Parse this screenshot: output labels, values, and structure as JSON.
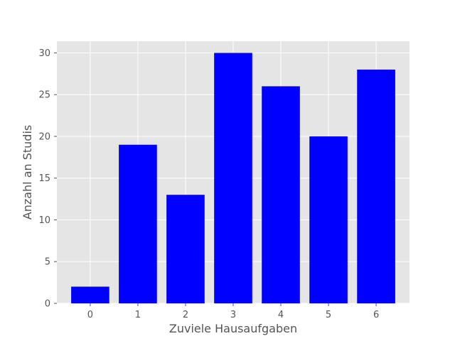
{
  "chart_data": {
    "type": "bar",
    "title": "",
    "xlabel": "Zuviele Hausaufgaben",
    "ylabel": "Anzahl an Studis",
    "categories": [
      "0",
      "1",
      "2",
      "3",
      "4",
      "5",
      "6"
    ],
    "values": [
      2,
      19,
      13,
      30,
      26,
      20,
      28
    ],
    "ylim": [
      0,
      31.4
    ],
    "yticks": [
      "0",
      "5",
      "10",
      "15",
      "20",
      "25",
      "30"
    ],
    "grid": true,
    "legend": "none",
    "colors": {
      "bar": "#0000ff",
      "plot_background": "#e5e5e5",
      "grid": "#ffffff",
      "text": "#555555"
    }
  }
}
